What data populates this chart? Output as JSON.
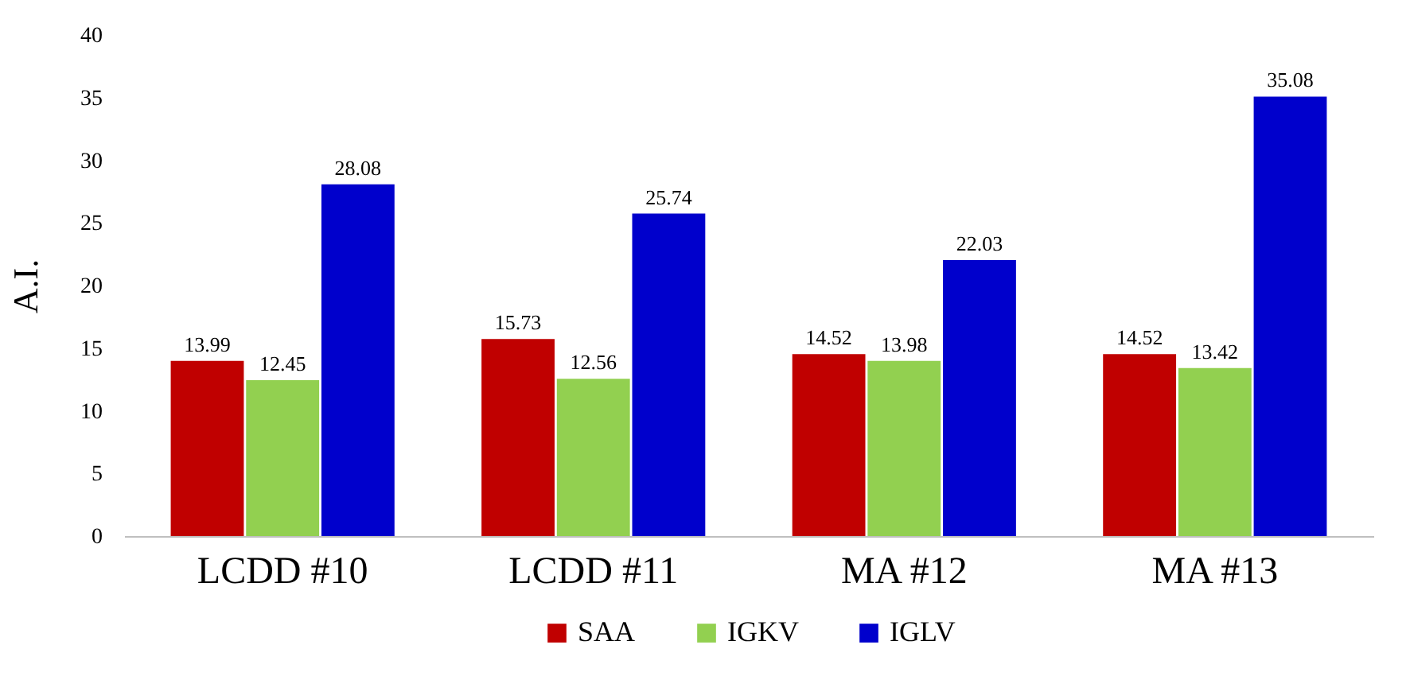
{
  "chart_data": {
    "type": "bar",
    "ylabel": "A.I.",
    "categories": [
      "LCDD #10",
      "LCDD #11",
      "MA #12",
      "MA #13"
    ],
    "series": [
      {
        "name": "SAA",
        "color": "#c00000",
        "values": [
          13.99,
          15.73,
          14.52,
          14.52
        ]
      },
      {
        "name": "IGKV",
        "color": "#92d050",
        "values": [
          12.45,
          12.56,
          13.98,
          13.42
        ]
      },
      {
        "name": "IGLV",
        "color": "#0000cc",
        "values": [
          28.08,
          25.74,
          22.03,
          35.08
        ]
      }
    ],
    "ylim": [
      0,
      40
    ],
    "yticks": [
      0,
      5,
      10,
      15,
      20,
      25,
      30,
      35,
      40
    ],
    "data_labels": true,
    "legend": "bottom",
    "grid": false
  }
}
